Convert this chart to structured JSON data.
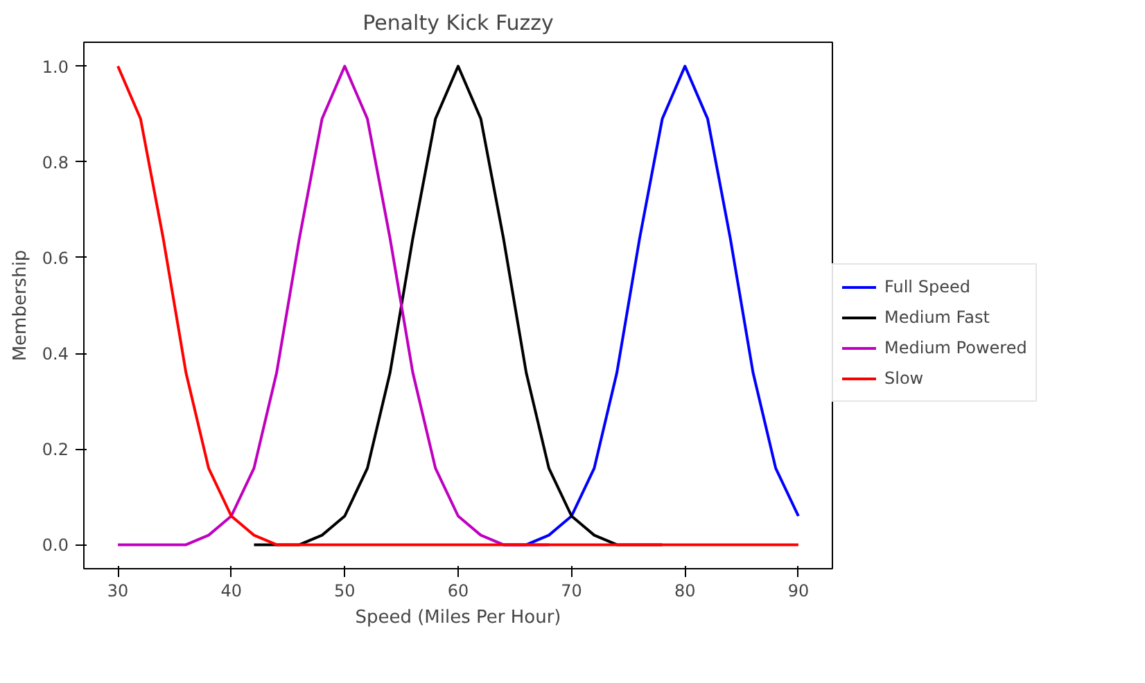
{
  "chart_data": {
    "type": "line",
    "title": "Penalty Kick Fuzzy",
    "xlabel": "Speed (Miles Per Hour)",
    "ylabel": "Membership",
    "x": [
      30,
      32,
      34,
      36,
      38,
      40,
      42,
      44,
      46,
      48,
      50,
      52,
      54,
      56,
      58,
      60,
      62,
      64,
      66,
      68,
      70,
      72,
      74,
      76,
      78,
      80,
      82,
      84,
      86,
      88,
      90
    ],
    "series": [
      {
        "name": "Full Speed",
        "color": "#0000ff",
        "values": [
          null,
          null,
          null,
          null,
          null,
          null,
          null,
          null,
          null,
          null,
          null,
          null,
          null,
          null,
          null,
          null,
          null,
          0.0,
          0.0,
          0.02,
          0.06,
          0.16,
          0.36,
          0.64,
          0.89,
          1,
          0.89,
          0.64,
          0.36,
          0.16,
          0.06
        ]
      },
      {
        "name": "Medium Fast",
        "color": "#000000",
        "values": [
          null,
          null,
          null,
          null,
          null,
          null,
          0,
          0.0,
          0.0,
          0.02,
          0.06,
          0.16,
          0.36,
          0.64,
          0.89,
          1,
          0.89,
          0.64,
          0.36,
          0.16,
          0.06,
          0.02,
          0.0,
          0.0,
          0,
          null,
          null,
          null,
          null,
          null,
          null
        ]
      },
      {
        "name": "Medium Powered",
        "color": "#bf00bf",
        "values": [
          0,
          0,
          0.0,
          0.0,
          0.02,
          0.06,
          0.16,
          0.36,
          0.64,
          0.89,
          1,
          0.89,
          0.64,
          0.36,
          0.16,
          0.06,
          0.02,
          0.0,
          0.0,
          0,
          null,
          null,
          null,
          null,
          null,
          null,
          null,
          null,
          null,
          null,
          null
        ]
      },
      {
        "name": "Slow",
        "color": "#ff0000",
        "values": [
          1,
          0.89,
          0.64,
          0.36,
          0.16,
          0.06,
          0.02,
          0.0,
          0.0,
          0,
          0,
          0,
          0,
          0,
          0,
          0,
          0,
          0,
          0,
          0,
          0,
          0,
          0,
          0,
          0,
          0,
          0,
          0,
          0,
          0,
          0
        ]
      }
    ],
    "xlim": [
      27,
      93
    ],
    "ylim": [
      -0.05,
      1.05
    ],
    "xticks": [
      30,
      40,
      50,
      60,
      70,
      80,
      90
    ],
    "yticks": [
      {
        "value": 0,
        "label": "0.0"
      },
      {
        "value": 0.2,
        "label": "0.2"
      },
      {
        "value": 0.4,
        "label": "0.4"
      },
      {
        "value": 0.6,
        "label": "0.6"
      },
      {
        "value": 0.8,
        "label": "0.8"
      },
      {
        "value": 1,
        "label": "1.0"
      }
    ],
    "grid": false,
    "legend": "right",
    "marker": "none",
    "line_style": "solid"
  }
}
